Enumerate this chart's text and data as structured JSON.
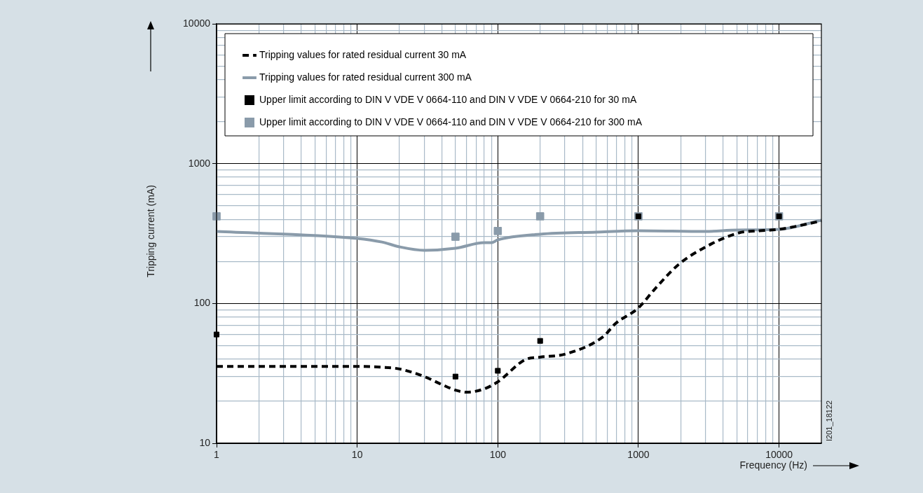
{
  "chart_data": {
    "type": "line",
    "xlabel": "Frequency (Hz)",
    "ylabel": "Tripping current (mA)",
    "log": "xy",
    "grid": true,
    "legend": "top left",
    "xlim": [
      1,
      20000
    ],
    "ylim": [
      10,
      10000
    ],
    "xticks": [
      1,
      {
        "value": 2,
        "label": null
      },
      {
        "value": 3,
        "label": null
      },
      {
        "value": 4,
        "label": null
      },
      {
        "value": 5,
        "label": null
      },
      {
        "value": 6,
        "label": null
      },
      {
        "value": 7,
        "label": null
      },
      {
        "value": 8,
        "label": null
      },
      {
        "value": 9,
        "label": null
      },
      10,
      {
        "value": 20,
        "label": null
      },
      {
        "value": 30,
        "label": null
      },
      {
        "value": 40,
        "label": null
      },
      {
        "value": 50,
        "label": null
      },
      {
        "value": 60,
        "label": null
      },
      {
        "value": 70,
        "label": null
      },
      {
        "value": 80,
        "label": null
      },
      {
        "value": 90,
        "label": null
      },
      100,
      {
        "value": 200,
        "label": null
      },
      {
        "value": 300,
        "label": null
      },
      {
        "value": 400,
        "label": null
      },
      {
        "value": 500,
        "label": null
      },
      {
        "value": 600,
        "label": null
      },
      {
        "value": 700,
        "label": null
      },
      {
        "value": 800,
        "label": null
      },
      {
        "value": 900,
        "label": null
      },
      1000,
      {
        "value": 2000,
        "label": null
      },
      {
        "value": 3000,
        "label": null
      },
      {
        "value": 4000,
        "label": null
      },
      {
        "value": 5000,
        "label": null
      },
      {
        "value": 6000,
        "label": null
      },
      {
        "value": 7000,
        "label": null
      },
      {
        "value": 8000,
        "label": null
      },
      {
        "value": 9000,
        "label": null
      },
      10000
    ],
    "yticks": [
      10,
      {
        "value": 20,
        "label": null
      },
      {
        "value": 30,
        "label": null
      },
      {
        "value": 40,
        "label": null
      },
      {
        "value": 50,
        "label": null
      },
      {
        "value": 60,
        "label": null
      },
      {
        "value": 70,
        "label": null
      },
      {
        "value": 80,
        "label": null
      },
      {
        "value": 90,
        "label": null
      },
      100,
      {
        "value": 200,
        "label": null
      },
      {
        "value": 300,
        "label": null
      },
      {
        "value": 400,
        "label": null
      },
      {
        "value": 500,
        "label": null
      },
      {
        "value": 600,
        "label": null
      },
      {
        "value": 700,
        "label": null
      },
      {
        "value": 800,
        "label": null
      },
      {
        "value": 900,
        "label": null
      },
      1000,
      {
        "value": 2000,
        "label": null
      },
      {
        "value": 3000,
        "label": null
      },
      {
        "value": 4000,
        "label": null
      },
      {
        "value": 5000,
        "label": null
      },
      {
        "value": 6000,
        "label": null
      },
      {
        "value": 7000,
        "label": null
      },
      {
        "value": 8000,
        "label": null
      },
      {
        "value": 9000,
        "label": null
      },
      10000
    ],
    "series": [
      {
        "type": "line",
        "name": "Tripping values for rated residual current 30 mA",
        "color": "#000000",
        "line_style": "dashed",
        "marker": "none",
        "x": [
          1,
          10,
          15,
          20,
          30,
          40,
          50,
          60,
          80,
          100,
          158,
          200,
          306,
          563,
          685,
          1000,
          1300,
          1930,
          2820,
          5180,
          7300,
          10000,
          20000
        ],
        "values": [
          35.5,
          35.5,
          35,
          34,
          30,
          26.3,
          24,
          23.2,
          24.5,
          27.5,
          39.8,
          41.3,
          43.6,
          58,
          71.6,
          93,
          126,
          190,
          245,
          320,
          331,
          339,
          389
        ]
      },
      {
        "type": "line",
        "name": "Tripping values for rated residual current 300 mA",
        "color": "#8a9baa",
        "line_style": "solid",
        "marker": "none",
        "x": [
          1,
          10,
          15,
          20,
          30,
          50,
          80,
          90,
          100,
          200,
          500,
          1000,
          3000,
          5000,
          10000,
          20000
        ],
        "values": [
          327,
          292,
          275,
          254,
          240,
          248,
          272,
          272,
          285,
          313,
          324,
          331,
          327,
          335,
          339,
          394
        ]
      },
      {
        "type": "scatter",
        "name": "Upper limit according to DIN V VDE V 0664-110 and DIN V VDE V 0664-210 for 30 mA",
        "color": "#000000",
        "marker": "square",
        "x": [
          1,
          50,
          100,
          200,
          1000,
          10000
        ],
        "values": [
          60,
          30,
          33,
          54,
          420,
          420
        ]
      },
      {
        "type": "scatter",
        "name": "Upper limit according to DIN V VDE V 0664-110 and DIN V VDE V 0664-210 for 300 mA",
        "color": "#8a9baa",
        "marker": "square",
        "x": [
          1,
          50,
          100,
          200,
          1000,
          10000
        ],
        "values": [
          420,
          300,
          330,
          420,
          420,
          420
        ]
      }
    ],
    "annotations": [
      "I201_18122"
    ]
  }
}
